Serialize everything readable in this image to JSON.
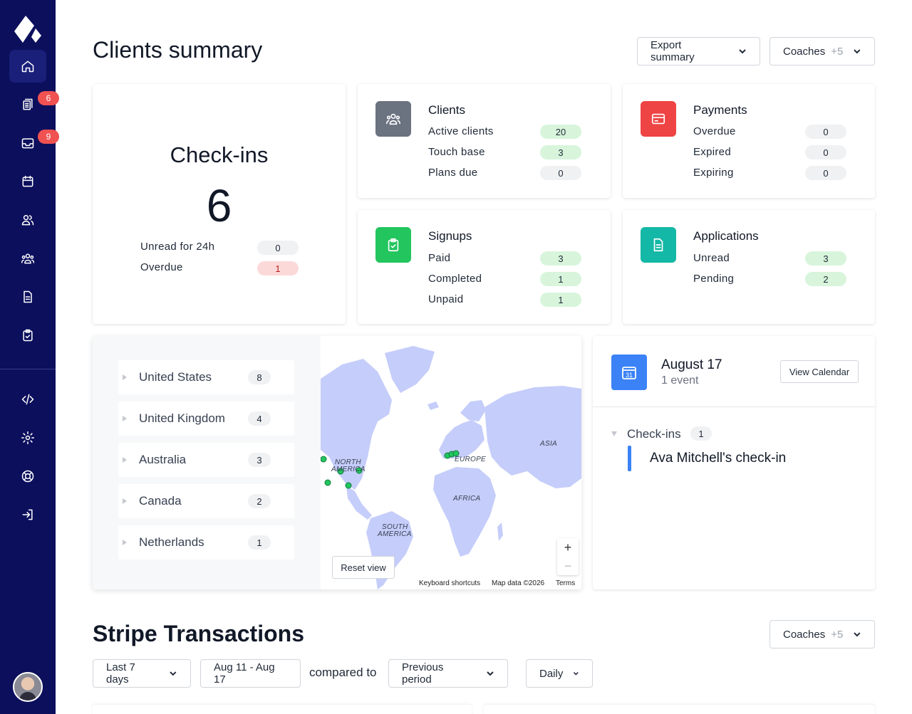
{
  "colors": {
    "sidebar_bg": "#0c0f5c",
    "badge_red": "#f05252",
    "clients_tile": "#6b7280",
    "payments_tile": "#ef4444",
    "signups_tile": "#22c55e",
    "applications_tile": "#14b8a6",
    "calendar_tile": "#3b82f6",
    "map_land": "#c5cdfa",
    "map_marker": "#22c55e"
  },
  "sidebar": {
    "items": [
      {
        "icon": "home-icon",
        "active": true
      },
      {
        "icon": "document-icon",
        "badge": "6"
      },
      {
        "icon": "inbox-icon",
        "badge": "9"
      },
      {
        "icon": "calendar-icon"
      },
      {
        "icon": "users-icon"
      },
      {
        "icon": "group-icon"
      },
      {
        "icon": "file-icon"
      },
      {
        "icon": "clipboard-icon"
      },
      {
        "icon": "code-icon"
      },
      {
        "icon": "settings-icon"
      },
      {
        "icon": "support-icon"
      },
      {
        "icon": "logout-icon"
      }
    ]
  },
  "header": {
    "title": "Clients summary",
    "export_label": "Export summary",
    "coaches_label": "Coaches",
    "coaches_extra": "+5"
  },
  "checkins": {
    "title": "Check-ins",
    "count": "6",
    "rows": [
      {
        "label": "Unread for 24h",
        "value": "0"
      },
      {
        "label": "Overdue",
        "value": "1"
      }
    ]
  },
  "clients": {
    "title": "Clients",
    "rows": [
      {
        "label": "Active clients",
        "value": "20"
      },
      {
        "label": "Touch base",
        "value": "3"
      },
      {
        "label": "Plans due",
        "value": "0"
      }
    ]
  },
  "payments": {
    "title": "Payments",
    "rows": [
      {
        "label": "Overdue",
        "value": "0"
      },
      {
        "label": "Expired",
        "value": "0"
      },
      {
        "label": "Expiring",
        "value": "0"
      }
    ]
  },
  "signups": {
    "title": "Signups",
    "rows": [
      {
        "label": "Paid",
        "value": "3"
      },
      {
        "label": "Completed",
        "value": "1"
      },
      {
        "label": "Unpaid",
        "value": "1"
      }
    ]
  },
  "applications": {
    "title": "Applications",
    "rows": [
      {
        "label": "Unread",
        "value": "3"
      },
      {
        "label": "Pending",
        "value": "2"
      }
    ]
  },
  "countries": [
    {
      "name": "United States",
      "count": "8"
    },
    {
      "name": "United Kingdom",
      "count": "4"
    },
    {
      "name": "Australia",
      "count": "3"
    },
    {
      "name": "Canada",
      "count": "2"
    },
    {
      "name": "Netherlands",
      "count": "1"
    }
  ],
  "map": {
    "labels": {
      "north_america_1": "NORTH",
      "north_america_2": "AMERICA",
      "europe": "EUROPE",
      "asia": "ASIA",
      "africa": "AFRICA",
      "south_america_1": "SOUTH",
      "south_america_2": "AMERICA"
    },
    "reset_label": "Reset view",
    "zoom_in": "+",
    "zoom_out": "−",
    "footer_shortcuts": "Keyboard shortcuts",
    "footer_data": "Map data ©2026",
    "footer_terms": "Terms"
  },
  "calendar": {
    "day_number": "31",
    "date": "August 17",
    "events": "1 event",
    "view_label": "View Calendar",
    "group_label": "Check-ins",
    "group_count": "1",
    "event_title": "Ava Mitchell's check-in"
  },
  "stripe": {
    "title": "Stripe Transactions",
    "coaches_label": "Coaches",
    "coaches_extra": "+5",
    "range_label": "Last 7 days",
    "dates_label": "Aug 11 - Aug 17",
    "compared_text": "compared to",
    "compare_label": "Previous period",
    "interval_label": "Daily"
  }
}
